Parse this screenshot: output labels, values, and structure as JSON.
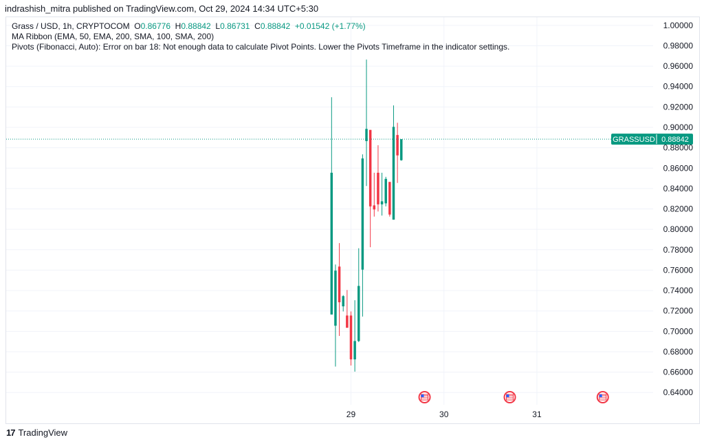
{
  "publish_line": "indrashish_mitra published on TradingView.com, Oct 29, 2024 14:34 UTC+5:30",
  "legend": {
    "symbol": "Grass / USD, 1h, CRYPTOCOM",
    "o_label": "O",
    "o_value": "0.86776",
    "h_label": "H",
    "h_value": "0.88842",
    "l_label": "L",
    "l_value": "0.86731",
    "c_label": "C",
    "c_value": "0.88842",
    "change": "+0.01542 (+1.77%)",
    "indicator1": "MA Ribbon (EMA, 50, EMA, 200, SMA, 100, SMA, 200)",
    "indicator2": "Pivots (Fibonacci, Auto): Error on bar 18: Not enough data to calculate Pivot Points. Lower the Pivots Timeframe in the indicator settings."
  },
  "footer": {
    "logo_mark": "17",
    "brand": "TradingView"
  },
  "colors": {
    "up": "#089981",
    "down": "#f23645",
    "grid": "#f0f3fa",
    "axis_text": "#131722",
    "price_tag": "#089981"
  },
  "chart_data": {
    "type": "candlestick",
    "symbol_tag": "GRASSUSD",
    "last_price": 0.88842,
    "y_ticks": [
      "1.00000",
      "0.98000",
      "0.96000",
      "0.94000",
      "0.92000",
      "0.90000",
      "0.88000",
      "0.86000",
      "0.84000",
      "0.82000",
      "0.80000",
      "0.78000",
      "0.76000",
      "0.74000",
      "0.72000",
      "0.70000",
      "0.68000",
      "0.66000",
      "0.64000"
    ],
    "ylim": [
      0.628,
      1.008
    ],
    "x_ticks": [
      {
        "label": "29",
        "t": 0
      },
      {
        "label": "30",
        "t": 24
      },
      {
        "label": "31",
        "t": 48
      }
    ],
    "xlim": [
      -89,
      78
    ],
    "candles": [
      {
        "t": -5,
        "o": 0.7165,
        "h": 0.9295,
        "l": 0.7165,
        "c": 0.8555
      },
      {
        "t": -4,
        "o": 0.7055,
        "h": 0.7655,
        "l": 0.6655,
        "c": 0.7595
      },
      {
        "t": -3,
        "o": 0.7635,
        "h": 0.7865,
        "l": 0.6955,
        "c": 0.7285
      },
      {
        "t": -2,
        "o": 0.7245,
        "h": 0.7355,
        "l": 0.7195,
        "c": 0.7345
      },
      {
        "t": -1,
        "o": 0.7155,
        "h": 0.7405,
        "l": 0.7035,
        "c": 0.7035
      },
      {
        "t": 0,
        "o": 0.7155,
        "h": 0.7195,
        "l": 0.6665,
        "c": 0.6725
      },
      {
        "t": 1,
        "o": 0.6725,
        "h": 0.7305,
        "l": 0.6605,
        "c": 0.6905
      },
      {
        "t": 2,
        "o": 0.6905,
        "h": 0.7815,
        "l": 0.6895,
        "c": 0.7445
      },
      {
        "t": 3,
        "o": 0.7605,
        "h": 0.8735,
        "l": 0.7145,
        "c": 0.8695
      },
      {
        "t": 4,
        "o": 0.8865,
        "h": 0.9665,
        "l": 0.8425,
        "c": 0.8985
      },
      {
        "t": 5,
        "o": 0.8975,
        "h": 0.8975,
        "l": 0.7825,
        "c": 0.8225
      },
      {
        "t": 6,
        "o": 0.8235,
        "h": 0.8555,
        "l": 0.8125,
        "c": 0.8195
      },
      {
        "t": 7,
        "o": 0.8555,
        "h": 0.8825,
        "l": 0.8175,
        "c": 0.8245
      },
      {
        "t": 8,
        "o": 0.8245,
        "h": 0.8555,
        "l": 0.8135,
        "c": 0.8275
      },
      {
        "t": 9,
        "o": 0.8255,
        "h": 0.8515,
        "l": 0.8225,
        "c": 0.8495
      },
      {
        "t": 10,
        "o": 0.8465,
        "h": 0.8465,
        "l": 0.8125,
        "c": 0.8145
      },
      {
        "t": 11,
        "o": 0.8095,
        "h": 0.9215,
        "l": 0.8095,
        "c": 0.9005
      },
      {
        "t": 12,
        "o": 0.8925,
        "h": 0.9045,
        "l": 0.8455,
        "c": 0.8725
      },
      {
        "t": 13,
        "o": 0.8678,
        "h": 0.8884,
        "l": 0.8673,
        "c": 0.8884
      }
    ],
    "event_markers": [
      {
        "t": 19
      },
      {
        "t": 41
      },
      {
        "t": 65
      }
    ]
  }
}
